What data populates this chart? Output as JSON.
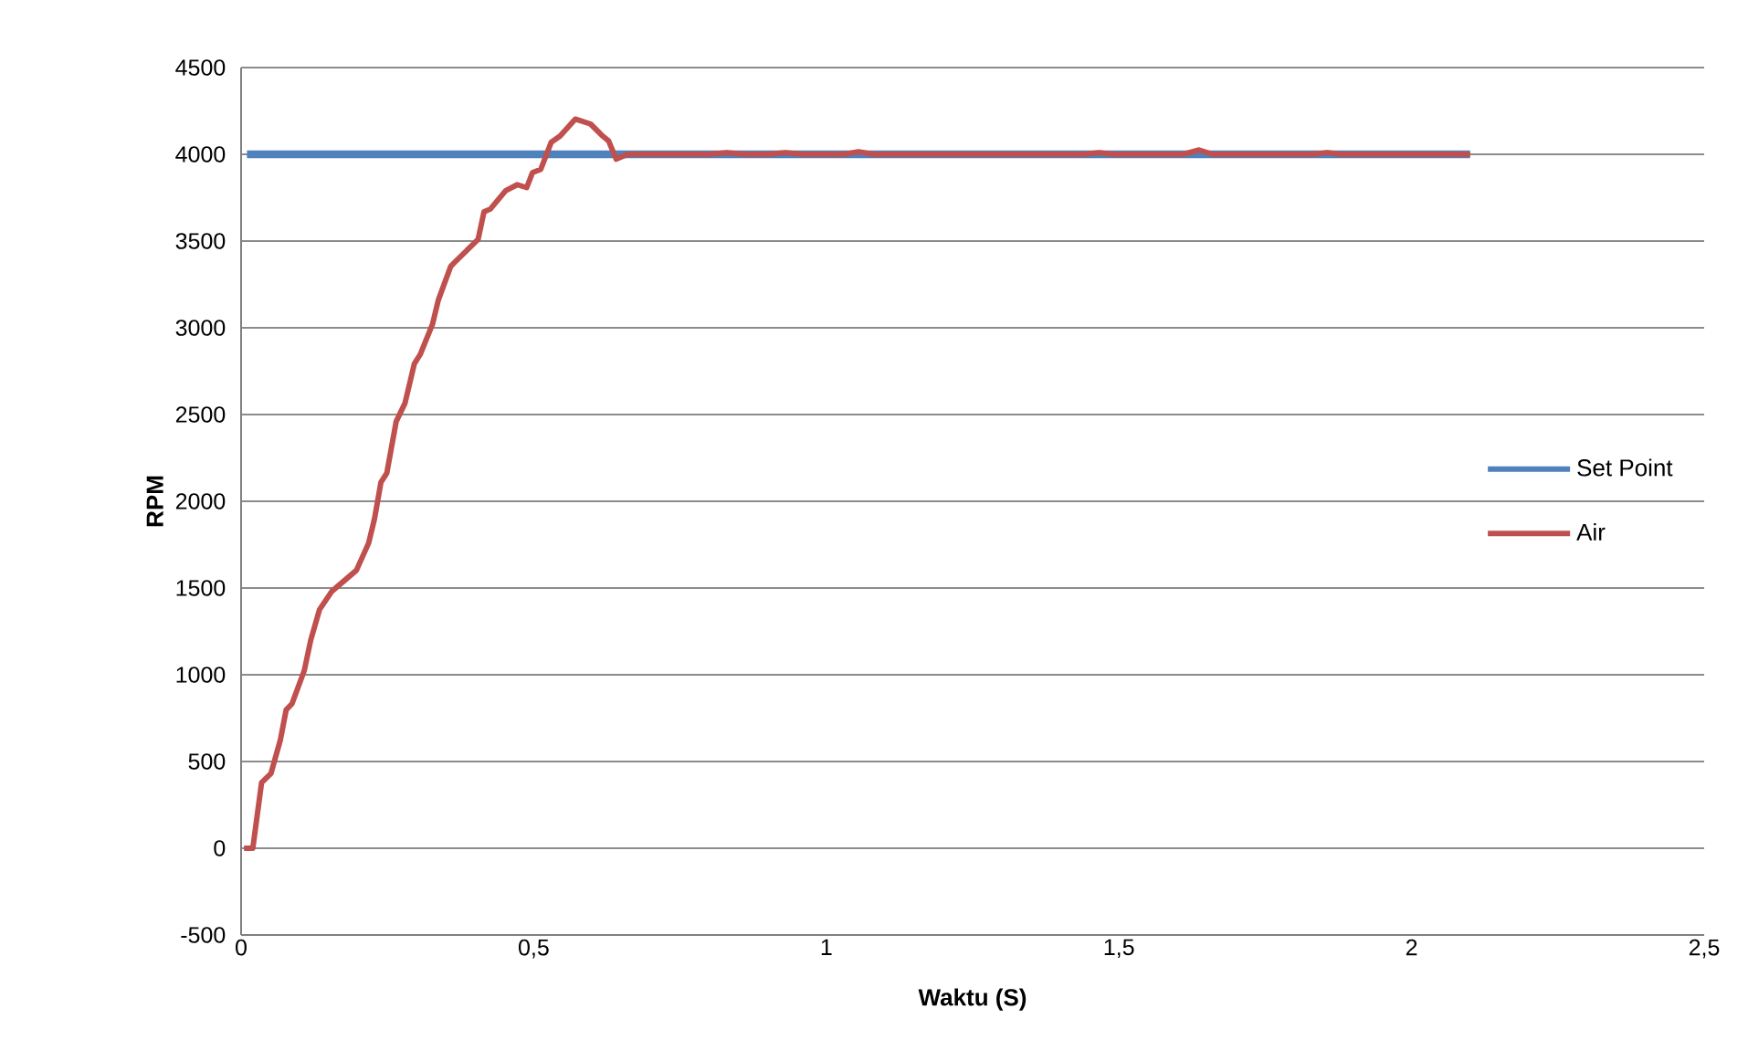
{
  "chart_data": {
    "type": "line",
    "xlabel": "Waktu (S)",
    "ylabel": "RPM",
    "xlim": [
      0,
      2.5
    ],
    "ylim": [
      -500,
      4500
    ],
    "xticks": [
      {
        "value": 0,
        "label": "0"
      },
      {
        "value": 0.5,
        "label": "0,5"
      },
      {
        "value": 1,
        "label": "1"
      },
      {
        "value": 1.5,
        "label": "1,5"
      },
      {
        "value": 2,
        "label": "2"
      },
      {
        "value": 2.5,
        "label": "2,5"
      }
    ],
    "yticks": [
      -500,
      0,
      500,
      1000,
      1500,
      2000,
      2500,
      3000,
      3500,
      4000,
      4500
    ],
    "grid": "y",
    "legend": "right",
    "marker": "none",
    "line_style": "solid",
    "series": [
      {
        "name": "Set Point",
        "color": "#4f81bd",
        "x": [
          0.01,
          2.1
        ],
        "values": [
          4000,
          4000
        ]
      },
      {
        "name": "Air",
        "color": "#c0504d",
        "x": [
          0.005,
          0.02,
          0.035,
          0.051,
          0.067,
          0.077,
          0.087,
          0.108,
          0.119,
          0.134,
          0.155,
          0.197,
          0.218,
          0.228,
          0.239,
          0.249,
          0.265,
          0.28,
          0.296,
          0.306,
          0.327,
          0.337,
          0.358,
          0.368,
          0.405,
          0.415,
          0.426,
          0.452,
          0.472,
          0.488,
          0.498,
          0.512,
          0.53,
          0.545,
          0.571,
          0.597,
          0.618,
          0.628,
          0.641,
          0.66,
          0.8,
          0.83,
          0.86,
          0.9,
          0.93,
          0.96,
          1.03,
          1.055,
          1.08,
          1.44,
          1.466,
          1.49,
          1.61,
          1.637,
          1.66,
          1.83,
          1.856,
          1.88,
          2.1
        ],
        "values": [
          0,
          0,
          378,
          431,
          623,
          798,
          833,
          1025,
          1200,
          1376,
          1481,
          1602,
          1760,
          1900,
          2110,
          2163,
          2460,
          2565,
          2793,
          2846,
          3020,
          3160,
          3353,
          3388,
          3510,
          3668,
          3685,
          3790,
          3825,
          3808,
          3895,
          3913,
          4070,
          4105,
          4203,
          4175,
          4105,
          4077,
          3972,
          4000,
          4000,
          4010,
          4000,
          4000,
          4010,
          4000,
          4000,
          4015,
          4000,
          4000,
          4010,
          4000,
          4000,
          4025,
          4000,
          4000,
          4010,
          4000,
          4000
        ]
      }
    ]
  }
}
